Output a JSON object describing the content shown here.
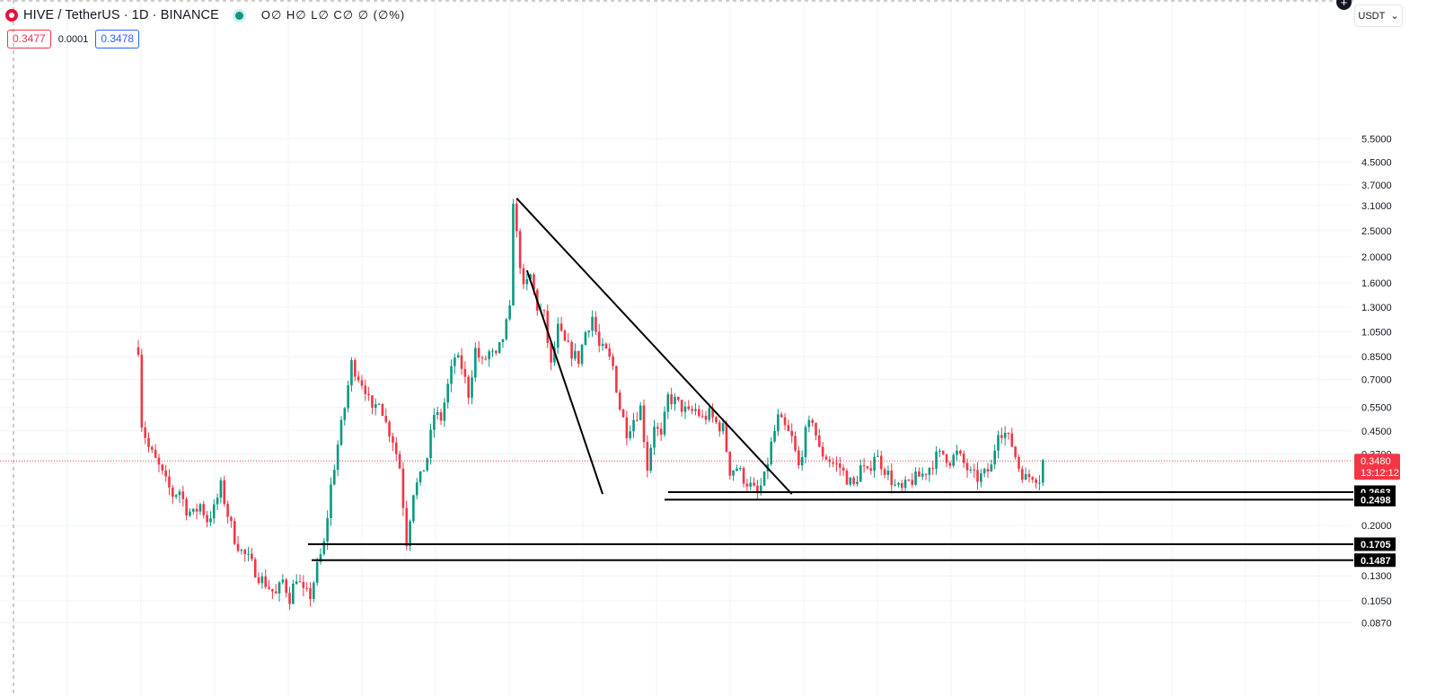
{
  "header": {
    "symbol": "HIVE / TetherUS · 1D · BINANCE",
    "ohlc": "O∅ H∅ L∅ C∅ ∅ (∅%)"
  },
  "quotes": {
    "sell": "0.3477",
    "spread": "0.0001",
    "buy": "0.3478"
  },
  "currency_button": {
    "label": "USDT"
  },
  "colors": {
    "up": "#089981",
    "down": "#f23645",
    "trendline": "#000000",
    "price_line": "#f23645"
  },
  "chart_data": {
    "type": "candlestick",
    "scale": "log",
    "ylim": [
      0.082,
      5.9
    ],
    "y_ticks": [
      "5.5000",
      "4.5000",
      "3.7000",
      "3.1000",
      "2.5000",
      "2.0000",
      "1.6000",
      "1.3000",
      "1.0500",
      "0.8500",
      "0.7000",
      "0.5500",
      "0.4500",
      "0.3700",
      "0.2000",
      "0.1300",
      "0.1050",
      "0.0870"
    ],
    "y_tick_values": [
      5.5,
      4.5,
      3.7,
      3.1,
      2.5,
      2.0,
      1.6,
      1.3,
      1.05,
      0.85,
      0.7,
      0.55,
      0.45,
      0.37,
      0.2,
      0.13,
      0.105,
      0.087
    ],
    "current_price": {
      "value": 0.348,
      "label": "0.3480",
      "countdown": "13:12:12"
    },
    "price_path": [
      [
        0,
        0.92
      ],
      [
        1,
        0.48
      ],
      [
        3,
        0.39
      ],
      [
        6,
        0.33
      ],
      [
        8,
        0.29
      ],
      [
        10,
        0.26
      ],
      [
        12,
        0.27
      ],
      [
        14,
        0.23
      ],
      [
        16,
        0.22
      ],
      [
        18,
        0.24
      ],
      [
        20,
        0.21
      ],
      [
        22,
        0.23
      ],
      [
        24,
        0.28
      ],
      [
        26,
        0.22
      ],
      [
        28,
        0.18
      ],
      [
        30,
        0.16
      ],
      [
        32,
        0.15
      ],
      [
        35,
        0.13
      ],
      [
        38,
        0.118
      ],
      [
        40,
        0.11
      ],
      [
        42,
        0.125
      ],
      [
        44,
        0.108
      ],
      [
        46,
        0.13
      ],
      [
        48,
        0.112
      ],
      [
        50,
        0.11
      ],
      [
        52,
        0.14
      ],
      [
        54,
        0.17
      ],
      [
        56,
        0.28
      ],
      [
        58,
        0.4
      ],
      [
        60,
        0.55
      ],
      [
        62,
        0.8
      ],
      [
        64,
        0.72
      ],
      [
        66,
        0.65
      ],
      [
        68,
        0.52
      ],
      [
        70,
        0.6
      ],
      [
        72,
        0.48
      ],
      [
        74,
        0.42
      ],
      [
        76,
        0.33
      ],
      [
        78,
        0.175
      ],
      [
        80,
        0.27
      ],
      [
        82,
        0.3
      ],
      [
        84,
        0.36
      ],
      [
        86,
        0.52
      ],
      [
        88,
        0.5
      ],
      [
        90,
        0.66
      ],
      [
        92,
        0.85
      ],
      [
        94,
        0.78
      ],
      [
        96,
        0.62
      ],
      [
        98,
        0.9
      ],
      [
        100,
        0.8
      ],
      [
        102,
        0.88
      ],
      [
        104,
        0.84
      ],
      [
        106,
        1.0
      ],
      [
        108,
        1.25
      ],
      [
        109,
        3.3
      ],
      [
        110,
        2.4
      ],
      [
        111,
        1.9
      ],
      [
        112,
        1.5
      ],
      [
        114,
        1.7
      ],
      [
        116,
        1.3
      ],
      [
        118,
        1.2
      ],
      [
        120,
        0.78
      ],
      [
        122,
        1.08
      ],
      [
        124,
        0.95
      ],
      [
        126,
        0.88
      ],
      [
        128,
        0.83
      ],
      [
        130,
        1.05
      ],
      [
        132,
        1.2
      ],
      [
        134,
        0.92
      ],
      [
        136,
        0.88
      ],
      [
        138,
        0.78
      ],
      [
        140,
        0.55
      ],
      [
        142,
        0.45
      ],
      [
        144,
        0.5
      ],
      [
        146,
        0.55
      ],
      [
        148,
        0.33
      ],
      [
        150,
        0.48
      ],
      [
        152,
        0.42
      ],
      [
        154,
        0.6
      ],
      [
        156,
        0.58
      ],
      [
        158,
        0.55
      ],
      [
        160,
        0.52
      ],
      [
        162,
        0.54
      ],
      [
        164,
        0.5
      ],
      [
        166,
        0.52
      ],
      [
        168,
        0.48
      ],
      [
        170,
        0.46
      ],
      [
        172,
        0.32
      ],
      [
        174,
        0.33
      ],
      [
        176,
        0.3
      ],
      [
        178,
        0.28
      ],
      [
        180,
        0.26
      ],
      [
        182,
        0.3
      ],
      [
        184,
        0.4
      ],
      [
        186,
        0.5
      ],
      [
        188,
        0.46
      ],
      [
        190,
        0.42
      ],
      [
        192,
        0.33
      ],
      [
        194,
        0.44
      ],
      [
        196,
        0.5
      ],
      [
        198,
        0.38
      ],
      [
        200,
        0.36
      ],
      [
        202,
        0.34
      ],
      [
        204,
        0.33
      ],
      [
        206,
        0.3
      ],
      [
        208,
        0.28
      ],
      [
        210,
        0.33
      ],
      [
        212,
        0.31
      ],
      [
        214,
        0.37
      ],
      [
        216,
        0.34
      ],
      [
        218,
        0.31
      ],
      [
        220,
        0.28
      ],
      [
        222,
        0.27
      ],
      [
        224,
        0.29
      ],
      [
        226,
        0.3
      ],
      [
        228,
        0.31
      ],
      [
        230,
        0.33
      ],
      [
        232,
        0.36
      ],
      [
        234,
        0.37
      ],
      [
        236,
        0.35
      ],
      [
        238,
        0.37
      ],
      [
        240,
        0.34
      ],
      [
        242,
        0.31
      ],
      [
        244,
        0.3
      ],
      [
        246,
        0.31
      ],
      [
        248,
        0.33
      ],
      [
        250,
        0.46
      ],
      [
        252,
        0.44
      ],
      [
        254,
        0.4
      ],
      [
        256,
        0.33
      ],
      [
        258,
        0.3
      ],
      [
        260,
        0.31
      ],
      [
        262,
        0.3
      ],
      [
        263,
        0.348
      ]
    ],
    "horizontal_levels": [
      {
        "value": 0.2663,
        "label": "0.2663"
      },
      {
        "value": 0.2498,
        "label": "0.2498"
      },
      {
        "value": 0.1705,
        "label": "0.1705"
      },
      {
        "value": 0.1487,
        "label": "0.1487"
      }
    ],
    "trendlines": [
      {
        "from": [
          110,
          3.3
        ],
        "to": [
          190,
          0.262
        ]
      },
      {
        "from": [
          113,
          1.78
        ],
        "to": [
          135,
          0.262
        ]
      }
    ]
  }
}
